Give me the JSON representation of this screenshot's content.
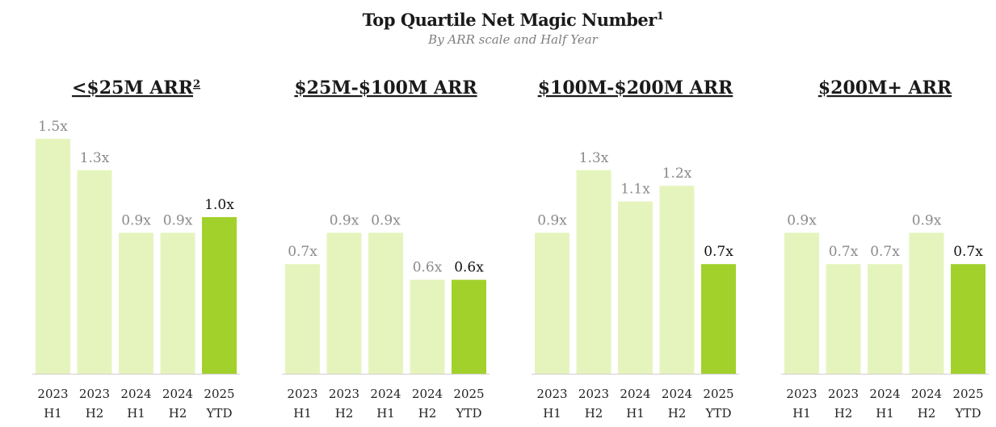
{
  "title": "Top Quartile Net Magic Number",
  "title_superscript": "1",
  "subtitle": "By ARR scale and Half Year",
  "colors": {
    "bar_past": "#e5f4bd",
    "bar_current": "#a2d12b",
    "label_past": "#8a8a8a",
    "label_current": "#111111",
    "axis": "#cfcfcf"
  },
  "chart_data": [
    {
      "type": "bar",
      "title": "<$25M ARR",
      "title_superscript": "2",
      "categories": [
        [
          "2023",
          "H1"
        ],
        [
          "2023",
          "H2"
        ],
        [
          "2024",
          "H1"
        ],
        [
          "2024",
          "H2"
        ],
        [
          "2025",
          "YTD"
        ]
      ],
      "values": [
        1.5,
        1.3,
        0.9,
        0.9,
        1.0
      ],
      "labels": [
        "1.5x",
        "1.3x",
        "0.9x",
        "0.9x",
        "1.0x"
      ],
      "highlight_index": 4
    },
    {
      "type": "bar",
      "title": "$25M-$100M ARR",
      "title_superscript": "",
      "categories": [
        [
          "2023",
          "H1"
        ],
        [
          "2023",
          "H2"
        ],
        [
          "2024",
          "H1"
        ],
        [
          "2024",
          "H2"
        ],
        [
          "2025",
          "YTD"
        ]
      ],
      "values": [
        0.7,
        0.9,
        0.9,
        0.6,
        0.6
      ],
      "labels": [
        "0.7x",
        "0.9x",
        "0.9x",
        "0.6x",
        "0.6x"
      ],
      "highlight_index": 4
    },
    {
      "type": "bar",
      "title": "$100M-$200M ARR",
      "title_superscript": "",
      "categories": [
        [
          "2023",
          "H1"
        ],
        [
          "2023",
          "H2"
        ],
        [
          "2024",
          "H1"
        ],
        [
          "2024",
          "H2"
        ],
        [
          "2025",
          "YTD"
        ]
      ],
      "values": [
        0.9,
        1.3,
        1.1,
        1.2,
        0.7
      ],
      "labels": [
        "0.9x",
        "1.3x",
        "1.1x",
        "1.2x",
        "0.7x"
      ],
      "highlight_index": 4
    },
    {
      "type": "bar",
      "title": "$200M+ ARR",
      "title_superscript": "",
      "categories": [
        [
          "2023",
          "H1"
        ],
        [
          "2023",
          "H2"
        ],
        [
          "2024",
          "H1"
        ],
        [
          "2024",
          "H2"
        ],
        [
          "2025",
          "YTD"
        ]
      ],
      "values": [
        0.9,
        0.7,
        0.7,
        0.9,
        0.7
      ],
      "labels": [
        "0.9x",
        "0.7x",
        "0.7x",
        "0.9x",
        "0.7x"
      ],
      "highlight_index": 4
    }
  ]
}
